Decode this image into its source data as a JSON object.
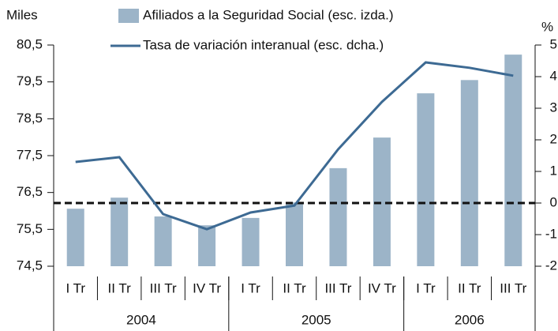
{
  "chart_data": {
    "type": "bar_line",
    "y_label": "Miles",
    "y2_label": "%",
    "categories": [
      "I Tr",
      "II Tr",
      "III Tr",
      "IV Tr",
      "I Tr",
      "II Tr",
      "III Tr",
      "IV Tr",
      "I Tr",
      "II Tr",
      "III Tr"
    ],
    "groups": [
      {
        "label": "2004",
        "size": 4
      },
      {
        "label": "2005",
        "size": 4
      },
      {
        "label": "2006",
        "size": 3
      }
    ],
    "series": [
      {
        "name": "Afiliados a la Seguridad Social (esc. izda.)",
        "type": "bar",
        "color": "#9cb4c8",
        "values": [
          76.06,
          76.36,
          75.85,
          75.61,
          75.81,
          76.23,
          77.16,
          77.99,
          79.19,
          79.55,
          80.24
        ]
      },
      {
        "name": "Tasa de variación interanual (esc. dcha.)",
        "type": "line",
        "axis": "y2",
        "color": "#3d6a93",
        "values": [
          1.3,
          1.45,
          -0.35,
          -0.83,
          -0.3,
          -0.08,
          1.7,
          3.2,
          4.45,
          4.28,
          4.03
        ]
      }
    ],
    "ylim": [
      74.5,
      80.5
    ],
    "yticks": [
      {
        "value": 74.5,
        "label": "74,5"
      },
      {
        "value": 75.5,
        "label": "75,5"
      },
      {
        "value": 76.5,
        "label": "76,5"
      },
      {
        "value": 77.5,
        "label": "77,5"
      },
      {
        "value": 78.5,
        "label": "78,5"
      },
      {
        "value": 79.5,
        "label": "79,5"
      },
      {
        "value": 80.5,
        "label": "80,5"
      }
    ],
    "y2lim": [
      -2,
      5
    ],
    "y2ticks": [
      -2,
      -1,
      0,
      1,
      2,
      3,
      4,
      5
    ],
    "reference_line": 0
  }
}
